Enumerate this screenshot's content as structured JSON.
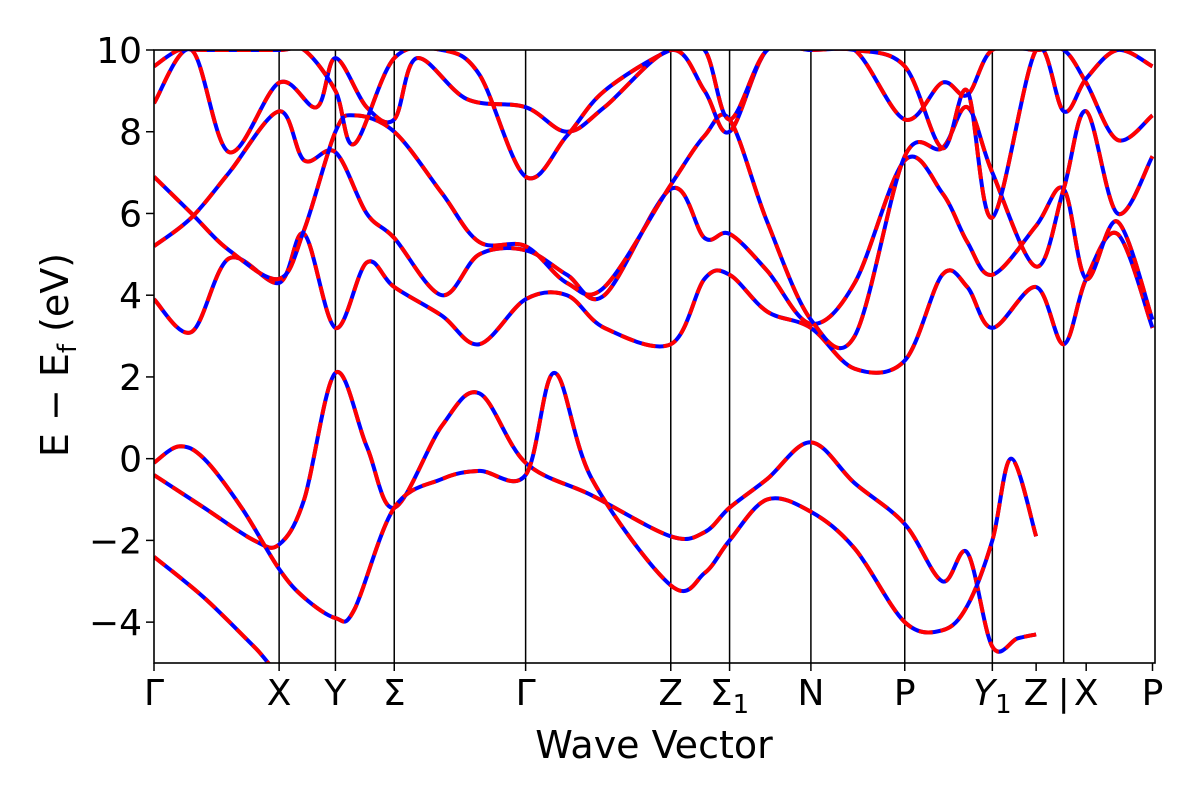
{
  "chart_data": {
    "type": "line",
    "title": "",
    "xlabel": "Wave Vector",
    "ylabel": "E − E_f (eV)",
    "ylabel_parts": {
      "main": "E − E",
      "sub": "f",
      "unit": " (eV)"
    },
    "ylim": [
      -5,
      10
    ],
    "yticks": [
      -4,
      -2,
      0,
      2,
      4,
      6,
      8,
      10
    ],
    "xlim": [
      0,
      8
    ],
    "grid": false,
    "legend": "none",
    "high_symmetry_points": [
      {
        "label": "Γ",
        "x": 0.0
      },
      {
        "label": "X",
        "x": 1.0
      },
      {
        "label": "Y",
        "x": 1.45
      },
      {
        "label": "Σ",
        "x": 1.92
      },
      {
        "label": "Γ",
        "x": 2.97
      },
      {
        "label": "Z",
        "x": 4.13
      },
      {
        "label": "Σ",
        "sub": "1",
        "x": 4.6
      },
      {
        "label": "N",
        "x": 5.25
      },
      {
        "label": "P",
        "x": 6.0
      },
      {
        "label": "Y",
        "sub": "1",
        "x": 6.7,
        "italic": true
      },
      {
        "label": "Z",
        "x": 7.05
      },
      {
        "label": "|",
        "x": 7.27
      },
      {
        "label": "X",
        "x": 7.45
      },
      {
        "label": "P",
        "x": 7.98
      }
    ],
    "vlines": [
      1.0,
      1.45,
      1.92,
      2.97,
      4.13,
      4.6,
      5.25,
      6.0,
      6.7,
      7.27
    ],
    "styles": {
      "series_a": {
        "color": "#0000ff",
        "dash": "solid"
      },
      "series_b": {
        "color": "#ff0000",
        "dash": "dashed"
      }
    },
    "bands": [
      {
        "x": [
          0,
          0.4,
          0.8,
          1.0,
          1.3,
          1.45,
          1.7,
          1.92,
          2.3,
          2.6,
          2.97,
          3.5,
          4.13,
          4.4,
          4.6,
          5.25,
          5.6,
          6.0,
          6.4,
          6.7,
          6.85,
          7.05,
          7.27,
          7.45,
          7.6,
          7.98
        ],
        "y": [
          -2.4,
          -3.4,
          -4.6,
          -5.2,
          -5.2,
          -5.2,
          -5.2,
          -5.2,
          -5.2,
          -5.2,
          -5.2,
          -5.2,
          -5.2,
          -5.2,
          -5.2,
          -5.2,
          -5.2,
          -5.2,
          -5.2,
          -5.2,
          -5.2,
          -5.2,
          -5.2,
          -5.2,
          -5.2,
          -5.2
        ]
      },
      {
        "x": [
          0,
          0.4,
          0.8,
          1.0,
          1.2,
          1.45,
          1.7,
          1.92,
          2.3,
          2.6,
          2.97,
          3.5,
          4.13,
          4.4,
          4.6,
          4.9,
          5.25,
          5.6,
          6.0,
          6.3,
          6.5,
          6.7,
          6.9,
          7.05
        ],
        "y": [
          -0.4,
          -1.2,
          -2.0,
          -2.1,
          -1.0,
          2.1,
          0.3,
          -1.2,
          0.8,
          1.6,
          -0.1,
          -0.9,
          -1.9,
          -1.8,
          -1.2,
          -0.5,
          0.4,
          -0.6,
          -1.6,
          -3.0,
          -2.3,
          -4.6,
          -4.4,
          -4.3
        ]
      },
      {
        "x": [
          0,
          0.2,
          0.4,
          0.7,
          1.0,
          1.2,
          1.45,
          1.6,
          1.92,
          2.3,
          2.6,
          2.97,
          3.2,
          3.5,
          4.13,
          4.4,
          4.6,
          4.9,
          5.25,
          5.6,
          6.0,
          6.3,
          6.5,
          6.7,
          6.85,
          7.05
        ],
        "y": [
          -0.1,
          0.3,
          0.0,
          -1.2,
          -2.7,
          -3.4,
          -3.9,
          -3.7,
          -1.2,
          -0.5,
          -0.3,
          -0.4,
          2.1,
          -0.5,
          -3.1,
          -2.8,
          -2.0,
          -1.0,
          -1.3,
          -2.2,
          -4.0,
          -4.2,
          -3.6,
          -2.0,
          0.0,
          -1.9
        ]
      },
      {
        "x": [
          0,
          0.3,
          0.6,
          1.0,
          1.2,
          1.45,
          1.7,
          1.92,
          2.3,
          2.6,
          2.97,
          3.3,
          3.6,
          4.13,
          4.4,
          4.6,
          4.9,
          5.25,
          5.6,
          6.0,
          6.3,
          6.5,
          6.7,
          7.05,
          7.27,
          7.45,
          7.7,
          7.98
        ],
        "y": [
          3.9,
          3.1,
          4.9,
          4.3,
          5.5,
          3.2,
          4.8,
          4.2,
          3.5,
          2.8,
          3.9,
          4.0,
          3.2,
          2.8,
          4.4,
          4.5,
          3.6,
          3.2,
          2.2,
          2.4,
          4.5,
          4.2,
          3.2,
          4.2,
          2.8,
          4.4,
          5.5,
          3.2
        ]
      },
      {
        "x": [
          0,
          0.3,
          0.6,
          1.0,
          1.2,
          1.45,
          1.7,
          1.92,
          2.3,
          2.6,
          2.97,
          3.3,
          3.6,
          4.13,
          4.4,
          4.6,
          4.9,
          5.25,
          5.6,
          6.0,
          6.3,
          6.5,
          6.7,
          7.05,
          7.27,
          7.45,
          7.7,
          7.98
        ],
        "y": [
          5.2,
          5.9,
          7.0,
          8.5,
          7.3,
          7.5,
          6.0,
          5.4,
          4.0,
          5.0,
          5.1,
          4.5,
          4.0,
          6.6,
          5.4,
          5.5,
          4.6,
          3.3,
          4.3,
          7.3,
          6.5,
          5.3,
          4.5,
          5.7,
          6.6,
          4.4,
          5.8,
          3.4
        ]
      },
      {
        "x": [
          0,
          0.3,
          0.6,
          1.0,
          1.2,
          1.45,
          1.6,
          1.92,
          2.3,
          2.6,
          2.97,
          3.3,
          3.6,
          4.13,
          4.4,
          4.6,
          4.9,
          5.25,
          5.6,
          6.0,
          6.3,
          6.5,
          6.7,
          7.05,
          7.27,
          7.45,
          7.7,
          7.98
        ],
        "y": [
          6.9,
          6.0,
          5.1,
          4.4,
          5.6,
          8.0,
          8.4,
          8.0,
          6.5,
          5.3,
          5.2,
          4.3,
          4.2,
          6.7,
          7.9,
          8.3,
          5.8,
          3.4,
          3.0,
          7.4,
          7.6,
          8.6,
          7.0,
          4.7,
          6.6,
          8.5,
          6.0,
          7.4
        ]
      },
      {
        "x": [
          0,
          0.3,
          0.6,
          1.0,
          1.3,
          1.45,
          1.7,
          1.92,
          2.1,
          2.5,
          2.97,
          3.3,
          3.6,
          4.13,
          4.4,
          4.6,
          4.9,
          5.25,
          5.6,
          6.0,
          6.3,
          6.5,
          6.7,
          7.05,
          7.27,
          7.45,
          7.7,
          7.98
        ],
        "y": [
          8.7,
          10.0,
          7.5,
          9.2,
          8.6,
          9.8,
          8.6,
          8.3,
          9.8,
          8.8,
          8.6,
          8.0,
          8.6,
          10.0,
          9.0,
          8.0,
          10.0,
          10.0,
          10.0,
          8.3,
          9.2,
          8.9,
          10.0,
          10.0,
          10.0,
          9.2,
          7.8,
          8.4
        ]
      },
      {
        "x": [
          0,
          0.2,
          0.4,
          1.0,
          1.2,
          1.45,
          1.6,
          1.92,
          2.3,
          2.6,
          2.97,
          3.3,
          3.6,
          4.13,
          4.4,
          4.6,
          4.9,
          5.25,
          5.6,
          6.0,
          6.3,
          6.5,
          6.7,
          7.05,
          7.27,
          7.45,
          7.7,
          7.98
        ],
        "y": [
          9.6,
          10.0,
          10.0,
          10.0,
          10.0,
          9.0,
          7.7,
          9.8,
          10.0,
          9.4,
          6.9,
          7.9,
          9.0,
          10.0,
          10.0,
          8.3,
          10.0,
          10.0,
          10.0,
          9.6,
          7.6,
          9.0,
          5.9,
          10.0,
          8.5,
          9.3,
          10.0,
          9.6
        ]
      }
    ]
  }
}
